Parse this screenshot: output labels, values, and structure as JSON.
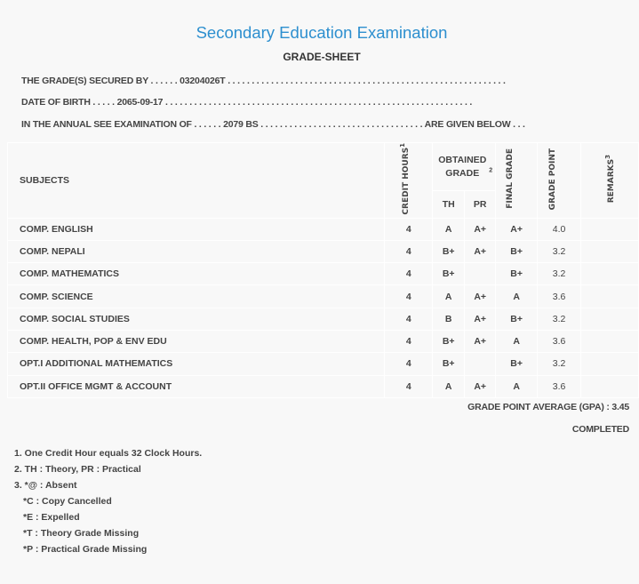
{
  "title": "Secondary Education Examination",
  "subtitle": "GRADE-SHEET",
  "info": {
    "secured_by_label": "THE GRADE(S) SECURED BY . . . . . .",
    "secured_by_value": "03204026T",
    "dob_label": "DATE OF BIRTH . . . . .",
    "dob_value": "2065-09-17",
    "exam_label": "IN THE ANNUAL SEE EXAMINATION OF . . . . . .",
    "exam_value": "2079 BS",
    "exam_suffix": "ARE GIVEN BELOW . . ."
  },
  "table": {
    "headers": {
      "subjects": "SUBJECTS",
      "credit": "CREDIT HOURS",
      "credit_sup": "1",
      "obtained": "OBTAINED GRADE",
      "obtained_sup": "2",
      "th": "TH",
      "pr": "PR",
      "final": "FINAL GRADE",
      "point": "GRADE POINT",
      "remarks": "REMARKS",
      "remarks_sup": "3"
    },
    "rows": [
      {
        "subject": "COMP. ENGLISH",
        "credit": "4",
        "th": "A",
        "pr": "A+",
        "final": "A+",
        "point": "4.0",
        "remarks": ""
      },
      {
        "subject": "COMP. NEPALI",
        "credit": "4",
        "th": "B+",
        "pr": "A+",
        "final": "B+",
        "point": "3.2",
        "remarks": ""
      },
      {
        "subject": "COMP. MATHEMATICS",
        "credit": "4",
        "th": "B+",
        "pr": "",
        "final": "B+",
        "point": "3.2",
        "remarks": ""
      },
      {
        "subject": "COMP. SCIENCE",
        "credit": "4",
        "th": "A",
        "pr": "A+",
        "final": "A",
        "point": "3.6",
        "remarks": ""
      },
      {
        "subject": "COMP. SOCIAL STUDIES",
        "credit": "4",
        "th": "B",
        "pr": "A+",
        "final": "B+",
        "point": "3.2",
        "remarks": ""
      },
      {
        "subject": "COMP. HEALTH, POP & ENV EDU",
        "credit": "4",
        "th": "B+",
        "pr": "A+",
        "final": "A",
        "point": "3.6",
        "remarks": ""
      },
      {
        "subject": "OPT.I ADDITIONAL MATHEMATICS",
        "credit": "4",
        "th": "B+",
        "pr": "",
        "final": "B+",
        "point": "3.2",
        "remarks": ""
      },
      {
        "subject": "OPT.II OFFICE MGMT & ACCOUNT",
        "credit": "4",
        "th": "A",
        "pr": "A+",
        "final": "A",
        "point": "3.6",
        "remarks": ""
      }
    ]
  },
  "gpa": "GRADE POINT AVERAGE (GPA) : 3.45",
  "status": "COMPLETED",
  "footnotes": [
    "1. One Credit Hour equals 32 Clock Hours.",
    "2. TH : Theory, PR : Practical",
    "3. *@ : Absent",
    "*C : Copy Cancelled",
    "*E : Expelled",
    "*T : Theory Grade Missing",
    "*P : Practical Grade Missing"
  ]
}
